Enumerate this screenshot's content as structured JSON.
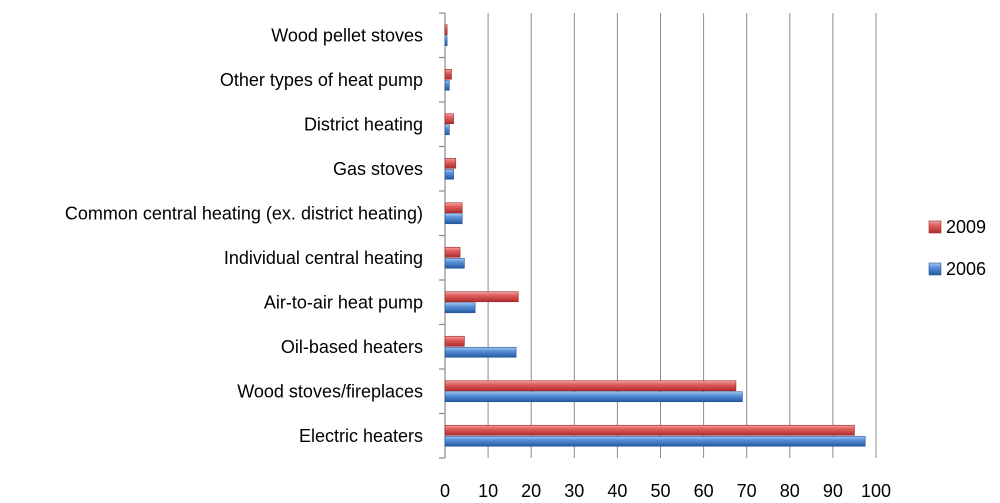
{
  "chart_data": {
    "type": "bar",
    "orientation": "horizontal",
    "title": "",
    "xlabel": "",
    "ylabel": "",
    "categories": [
      "Wood pellet stoves",
      "Other types of heat pump",
      "District heating",
      "Gas stoves",
      "Common central heating (ex. district heating)",
      "Individual central heating",
      "Air-to-air heat pump",
      "Oil-based heaters",
      "Wood stoves/fireplaces",
      "Electric heaters"
    ],
    "series": [
      {
        "name": "2009",
        "color": "#d94d4d",
        "values": [
          0.5,
          1.5,
          2,
          2.5,
          4,
          3.5,
          17,
          4.5,
          67.5,
          95
        ]
      },
      {
        "name": "2006",
        "color": "#3d7cc9",
        "values": [
          0.5,
          1,
          1,
          2,
          4,
          4.5,
          7,
          16.5,
          69,
          97.5
        ]
      }
    ],
    "xlim": [
      0,
      100
    ],
    "xticks": [
      "0",
      "10",
      "20",
      "30",
      "40",
      "50",
      "60",
      "70",
      "80",
      "90",
      "100"
    ],
    "grid": true,
    "legend_position": "right"
  }
}
